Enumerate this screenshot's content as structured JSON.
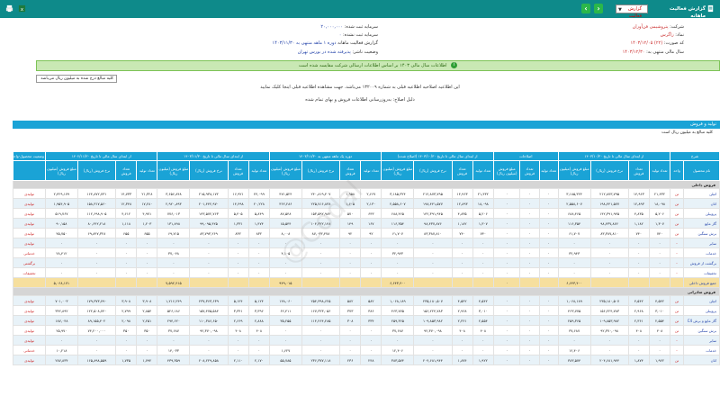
{
  "topbar": {
    "title": "گزارش فعالیت ماهانه",
    "report_type_value": "گزارش فعالیت",
    "prev_label": "›",
    "next_label": "‹",
    "print_icon": "printer-icon",
    "excel_icon": "excel-icon",
    "colors": {
      "bar": "#0e8a8a",
      "nav": "#2bb74a"
    }
  },
  "header": {
    "company_label": "شرکت:",
    "company_value": "پتروشیمی فن‌آوران",
    "symbol_label": "نماد:",
    "symbol_value": "زاگرس",
    "code_label": "کد صورت:",
    "code_value": "(۲۲)",
    "period_label": "سال مالی منتهی به:",
    "period_value": "۱۴۰۳/۱۲/۳۰",
    "capital_registered_label": "سرمایه ثبت شده:",
    "capital_registered_value": "۲۰,۰۰۰,۰۰۰",
    "capital_unregistered_label": "سرمایه ثبت نشده:",
    "capital_unregistered_value": "۰",
    "report_label": "گزارش فعالیت ماهانه",
    "report_period_value": "دوره ۱ ماهه منتهی به ۱۴۰۳/۱۱/۳۰",
    "status_label": "وضعیت ناشر:",
    "status_value": "پذیرفته شده در بورس تهران",
    "date_value": "۱۴۰۳/۱۲/۰۵"
  },
  "notice": {
    "icon": "info-icon",
    "text": "اطلاعات سال مالی ۱۴۰۳ بر اساس اطلاعات ارسالی شرکت مقایسه شده است"
  },
  "unit_box": "کلیه مبالغ درج شده به میلیون ریال می‌باشد",
  "messages": [
    "این اطلاعیه اصلاحیه اطلاعیه قبلی به شماره ۱۳۲۰۰۹ می‌باشد. جهت مشاهده اطلاعیه قبلی اینجا کلیک نمایید",
    "دلیل اصلاح: به‌روزرسانی اطلاعات فروش و بهای تمام شده"
  ],
  "section": {
    "title": "تولید و فروش",
    "subtitle": "کلیه مبالغ به میلیون ریال است"
  },
  "table": {
    "group_headers": [
      "شرح",
      "از ابتدای سال مالی تا تاریخ ۱۴۰۳/۱۰/۳۰",
      "اصلاحات",
      "از ابتدای سال مالی تا تاریخ ۱۴۰۳/۱۰/۳۰ (اصلاح شده)",
      "دوره یک ماهه منتهی به ۱۴۰۳/۱۱/۳۰",
      "از ابتدای سال مالی تا تاریخ ۱۴۰۳/۱۱/۳۰",
      "از ابتدای سال مالی تا تاریخ ۱۴۰۲/۱۱/۳۰",
      "وضعیت محصول-واحد"
    ],
    "sub_headers": [
      "نام محصول",
      "واحد",
      "تعداد تولید",
      "تعداد فروش",
      "نرخ فروش (ریال)",
      "مبلغ فروش (میلیون ریال)",
      "تعداد تولید",
      "تعداد فروش",
      "مبلغ فروش (میلیون ریال)",
      "تعداد تولید",
      "تعداد فروش",
      "نرخ فروش (ریال)",
      "مبلغ فروش (میلیون ریال)",
      "تعداد تولید",
      "تعداد فروش",
      "نرخ فروش (ریال)",
      "مبلغ فروش (میلیون ریال)",
      "تعداد تولید",
      "تعداد فروش",
      "نرخ فروش (ریال)",
      "مبلغ فروش (میلیون ریال)",
      "تعداد تولید",
      "تعداد فروش",
      "نرخ فروش (ریال)",
      "مبلغ فروش (میلیون ریال)",
      ""
    ],
    "rows": [
      {
        "kind": "group",
        "label": "فروش داخلی"
      },
      {
        "kind": "data",
        "cells": [
          "اتیلن",
          "تن",
          "۲۱,۴۳۲",
          "۱۴,۹۶۳",
          "۲۱۲,۸۷۳,۷۹۵",
          "۳,۱۸۵,۳۲۴",
          "۰",
          "۰",
          "۰",
          "۲۱,۴۳۲",
          "۱۴,۹۶۳",
          "۲۱۲,۸۷۳,۷۹۵",
          "۳,۱۸۵,۳۲۴",
          "۲,۶۶۷",
          "۱,۹۵۸",
          "۲۴۰,۸۱۹,۴۰۷",
          "۴۷۱,۵۲۴",
          "۲۴,۰۹۹",
          "۱۶,۹۲۱",
          "۲۱۵,۹۳۸,۱۷۲",
          "۳,۶۵۶,۸۴۸",
          "۲۱,۳۲۸",
          "۱۴,۷۳۳",
          "۱۶۴,۸۷۲,۷۳۱",
          "۲,۴۲۹,۱۷۹",
          "تولیدی"
        ]
      },
      {
        "kind": "data",
        "cells": [
          "اتان",
          "تن",
          "۱۸,۰۹۸",
          "۱۲,۸۹۳",
          "۱۹۸,۴۴۱,۵۷۷",
          "۲,۵۵۸,۶۰۷",
          "۰",
          "۰",
          "۰",
          "۱۸,۰۹۸",
          "۱۲,۸۹۳",
          "۱۹۸,۴۴۱,۵۷۷",
          "۲,۵۵۸,۶۰۷",
          "۲,۱۳۰",
          "۱,۶۰۵",
          "۲۲۵,۷۱۶,۸۳۸",
          "۳۶۲,۲۸۶",
          "۲۰,۲۲۸",
          "۱۴,۴۹۸",
          "۲۰۱,۴۴۲,۹۷۰",
          "۲,۹۲۰,۸۹۳",
          "۱۷,۲۸۰",
          "۱۲,۳۴۸",
          "۱۵۸,۳۱۷,۵۶۰",
          "۱,۹۵۴,۹۰۵",
          "تولیدی"
        ]
      },
      {
        "kind": "data",
        "cells": [
          "پروپیلن",
          "تن",
          "۵,۲۰۶",
          "۴,۸۳۵",
          "۱۴۲,۳۹۱,۹۴۵",
          "۶۸۸,۴۶۵",
          "۰",
          "۰",
          "۰",
          "۵,۲۰۶",
          "۴,۸۳۵",
          "۱۴۲,۳۹۱,۹۴۵",
          "۶۸۸,۴۶۵",
          "۶۴۳",
          "۵۷۰",
          "۱۵۳,۵۹۲,۹۸۲",
          "۸۷,۵۴۸",
          "۵,۸۴۹",
          "۵,۴۰۵",
          "۱۴۳,۵۷۲,۷۶۳",
          "۷۷۶,۰۱۳",
          "۴,۹۷۱",
          "۴,۶۱۲",
          "۱۱۲,۶۹۸,۹۰۵",
          "۵۱۹,۷۶۷",
          "تولیدی"
        ]
      },
      {
        "kind": "data",
        "cells": [
          "گاز مایع",
          "تن",
          "۱,۳۰۷",
          "۱,۱۸۲",
          "۹۸,۴۳۷,۸۷۶",
          "۱۱۶,۳۵۴",
          "۰",
          "۰",
          "۰",
          "۱,۳۰۷",
          "۱,۱۸۲",
          "۹۸,۴۳۷,۸۷۶",
          "۱۱۶,۳۵۴",
          "۱۶۷",
          "۱۴۹",
          "۱۰۴,۳۲۲,۱۴۸",
          "۱۵,۵۴۴",
          "۱,۴۷۴",
          "۱,۳۳۱",
          "۹۹,۰۹۵,۴۲۵",
          "۱۳۱,۸۹۸",
          "۱,۲۰۳",
          "۱,۱۱۸",
          "۸۰,۶۴۲,۲۱۸",
          "۹۰,۱۵۸",
          "تولیدی"
        ]
      },
      {
        "kind": "data",
        "cells": [
          "برش سنگین",
          "تن",
          "۷۴۰",
          "۷۴۰",
          "۸۳,۳۸۷,۸۱۰",
          "۶۱,۷۰۷",
          "۰",
          "۰",
          "۰",
          "۷۴۰",
          "۷۴۰",
          "۸۳,۳۸۷,۸۱۰",
          "۶۱,۷۰۷",
          "۹۲",
          "۹۲",
          "۸۷,۰۴۳,۴۷۸",
          "۸,۰۰۸",
          "۸۳۲",
          "۸۳۲",
          "۸۳,۷۹۳,۲۶۹",
          "۶۹,۷۱۵",
          "۶۵۵",
          "۶۵۵",
          "۶۹,۸۴۷,۳۲۸",
          "۴۵,۷۵۰",
          "تولیدی"
        ]
      },
      {
        "kind": "data",
        "cells": [
          "سایر",
          "-",
          "۰",
          "۰",
          "۰",
          "۰",
          "۰",
          "۰",
          "۰",
          "۰",
          "۰",
          "۰",
          "۰",
          "۰",
          "۰",
          "۰",
          "۰",
          "۰",
          "۰",
          "۰",
          "۰",
          "۰",
          "۰",
          "۰",
          "۰",
          "تولیدی"
        ]
      },
      {
        "kind": "data",
        "cells": [
          "خدمات",
          "-",
          "۰",
          "۰",
          "۰",
          "۳۲,۹۴۳",
          "۰",
          "۰",
          "۰",
          "۰",
          "۰",
          "۰",
          "۳۲,۹۴۳",
          "۰",
          "۰",
          "۰",
          "۴,۱۰۵",
          "۰",
          "۰",
          "۰",
          "۳۷,۰۴۸",
          "۰",
          "۰",
          "۰",
          "۲۸,۴۱۲",
          "خدماتی"
        ]
      },
      {
        "kind": "data",
        "cells": [
          "برگشت از فروش",
          "-",
          "۰",
          "۰",
          "۰",
          "۰",
          "۰",
          "۰",
          "۰",
          "۰",
          "۰",
          "۰",
          "۰",
          "۰",
          "۰",
          "۰",
          "۰",
          "۰",
          "۰",
          "۰",
          "۰",
          "۰",
          "۰",
          "۰",
          "۰",
          "برگشتی"
        ]
      },
      {
        "kind": "data",
        "cells": [
          "تخفیفات",
          "-",
          "۰",
          "۰",
          "۰",
          "۰",
          "۰",
          "۰",
          "۰",
          "۰",
          "۰",
          "۰",
          "۰",
          "۰",
          "۰",
          "۰",
          "۰",
          "۰",
          "۰",
          "۰",
          "۰",
          "۰",
          "۰",
          "۰",
          "۰",
          "تخفیفات"
        ]
      },
      {
        "kind": "sum",
        "cells": [
          "جمع فروش داخلی",
          "",
          "",
          "",
          "",
          "۶,۶۴۳,۴۰۰",
          "",
          "",
          "۰",
          "",
          "",
          "",
          "۶,۶۴۳,۴۰۰",
          "",
          "",
          "",
          "۹۴۹,۰۱۵",
          "",
          "",
          "",
          "۷,۵۹۲,۴۱۵",
          "",
          "",
          "",
          "۵,۰۶۸,۱۷۱",
          ""
        ]
      },
      {
        "kind": "group",
        "label": "فروش صادراتی"
      },
      {
        "kind": "data",
        "cells": [
          "اتیلن",
          "تن",
          "۴,۵۴۲",
          "۴,۵۴۲",
          "۲۳۵,۱۸۰,۵۰۷",
          "۱,۰۶۸,۱۸۹",
          "۰",
          "۰",
          "۰",
          "۴,۵۴۲",
          "۴,۵۴۲",
          "۲۳۵,۱۸۰,۵۰۷",
          "۱,۰۶۸,۱۸۹",
          "۵۸۲",
          "۵۸۲",
          "۲۵۴,۳۹۸,۶۲۵",
          "۱۴۸,۰۶۰",
          "۵,۱۲۴",
          "۵,۱۲۴",
          "۲۳۷,۳۶۳,۶۳۹",
          "۱,۲۱۶,۲۴۹",
          "۳,۹۰۸",
          "۳,۹۰۸",
          "۱۷۹,۳۷۳,۷۹۰",
          "۷۰۱,۰۰۳",
          "تولیدی"
        ]
      },
      {
        "kind": "data",
        "cells": [
          "پروپیلن",
          "تن",
          "۳,۰۱۰",
          "۲,۹۶۸",
          "۱۵۶,۲۲۴,۷۸۳",
          "۴۶۳,۷۷۵",
          "۰",
          "۰",
          "۰",
          "۳,۰۱۰",
          "۲,۹۶۸",
          "۱۵۶,۲۲۴,۷۸۳",
          "۴۶۳,۷۷۵",
          "۳۸۶",
          "۳۷۳",
          "۱۶۷,۳۲۳,۰۵۶",
          "۶۲,۴۱۱",
          "۳,۳۹۶",
          "۳,۳۴۱",
          "۱۵۷,۴۷۵,۵۸۴",
          "۵۲۶,۱۸۶",
          "۲,۸۵۴",
          "۲,۷۹۹",
          "۱۲۲,۵۰۸,۷۴۰",
          "۳۴۲,۸۹۲",
          "تولیدی"
        ]
      },
      {
        "kind": "data",
        "cells": [
          "گاز مایع و برش C4",
          "تن",
          "۲,۵۵۴",
          "۲,۳۶۱",
          "۱۰۹,۸۵۳,۹۸۲",
          "۲۵۹,۳۶۵",
          "۰",
          "۰",
          "۰",
          "۲,۵۵۴",
          "۲,۳۶۱",
          "۱۰۹,۸۵۳,۹۸۲",
          "۲۵۹,۳۶۵",
          "۳۳۴",
          "۳۰۸",
          "۱۱۴,۴۶۴,۲۸۵",
          "۳۵,۲۵۵",
          "۲,۸۸۸",
          "۲,۶۶۹",
          "۱۱۰,۳۸۶,۶۵۰",
          "۲۹۴,۶۲۰",
          "۲,۲۵۱",
          "۲,۰۹۸",
          "۸۹,۱۵۵,۴۰۲",
          "۱۸۷,۰۴۸",
          "تولیدی"
        ]
      },
      {
        "kind": "data",
        "cells": [
          "برش سنگین",
          "تن",
          "۴۰۸",
          "۴۰۸",
          "۹۲,۳۷۰,۰۹۸",
          "۳۷,۶۸۷",
          "۰",
          "۰",
          "۰",
          "۴۰۸",
          "۴۰۸",
          "۹۲,۳۷۰,۰۹۸",
          "۳۷,۶۸۷",
          "۰",
          "۰",
          "۰",
          "۰",
          "۴۰۸",
          "۴۰۸",
          "۹۲,۳۷۰,۰۹۸",
          "۳۷,۶۸۷",
          "۳۵۰",
          "۳۵۰",
          "۷۴,۲۰۰,۰۰۰",
          "۲۵,۹۷۰",
          "تولیدی"
        ]
      },
      {
        "kind": "data",
        "cells": [
          "سایر",
          "-",
          "۰",
          "۰",
          "۰",
          "۰",
          "۰",
          "۰",
          "۰",
          "۰",
          "۰",
          "۰",
          "۰",
          "۰",
          "۰",
          "۰",
          "۰",
          "۰",
          "۰",
          "۰",
          "۰",
          "۰",
          "۰",
          "۰",
          "۰",
          "تولیدی"
        ]
      },
      {
        "kind": "data",
        "cells": [
          "خدمات",
          "-",
          "۰",
          "۰",
          "۰",
          "۱۲,۴۰۶",
          "۰",
          "۰",
          "۰",
          "۰",
          "۰",
          "۰",
          "۱۲,۴۰۶",
          "۰",
          "۰",
          "۰",
          "۱,۶۲۷",
          "۰",
          "۰",
          "۰",
          "۱۴,۰۳۳",
          "۰",
          "۰",
          "۰",
          "۱۰,۲۱۸",
          "خدماتی"
        ]
      },
      {
        "kind": "data",
        "cells": [
          "اتان",
          "تن",
          "۱,۹۲۲",
          "۱,۸۷۴",
          "۲۰۴,۶۸۱,۹۴۴",
          "۳۸۳,۵۷۴",
          "۰",
          "۰",
          "۰",
          "۱,۹۲۲",
          "۱,۸۷۴",
          "۲۰۴,۶۸۱,۹۴۴",
          "۳۸۳,۵۷۴",
          "۲۴۸",
          "۲۳۶",
          "۲۳۶,۳۷۷,۱۱۸",
          "۵۵,۷۸۵",
          "۲,۱۷۰",
          "۲,۱۱۰",
          "۲۰۸,۲۲۹,۸۵۸",
          "۴۳۹,۳۵۹",
          "۱,۷۹۲",
          "۱,۷۳۵",
          "۱۶۵,۸۹۸,۵۵۹",
          "۲۸۷,۸۳۴",
          "تولیدی"
        ]
      }
    ]
  }
}
